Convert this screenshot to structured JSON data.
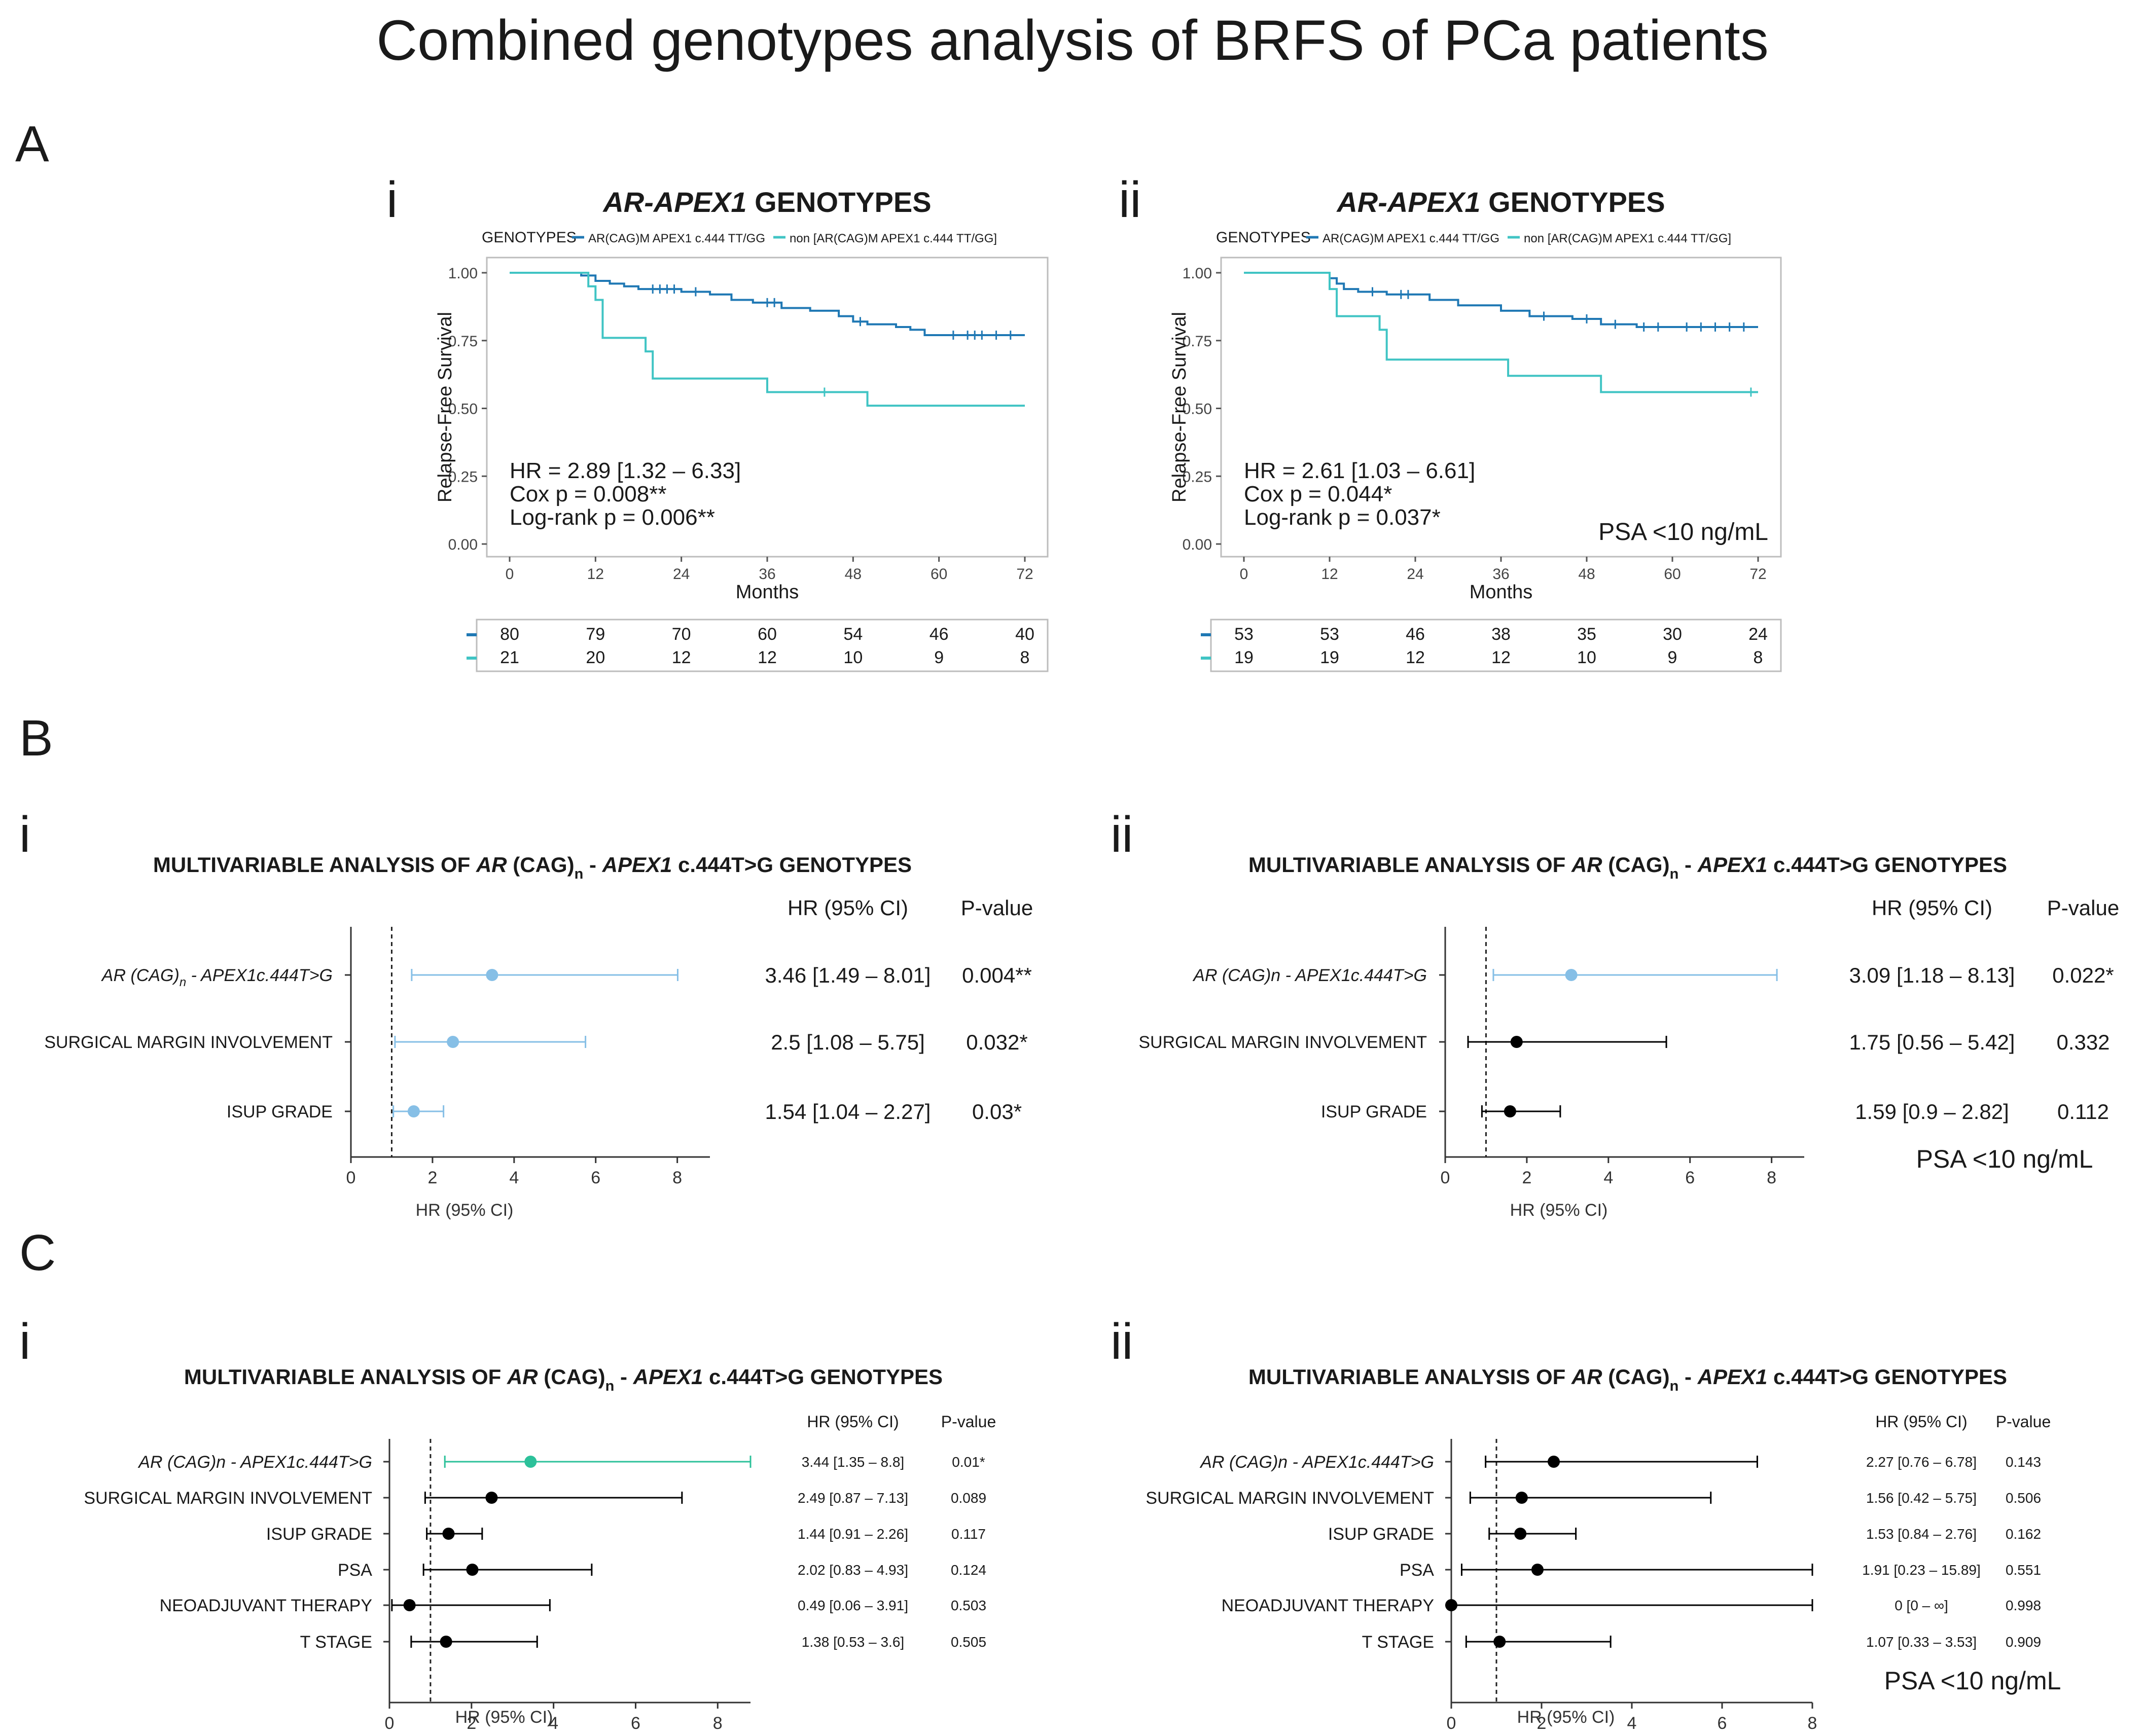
{
  "figure": {
    "title": "Combined genotypes analysis of BRFS of PCa patients",
    "section_labels": [
      "A",
      "B",
      "C"
    ],
    "panel_labels": [
      "i",
      "ii"
    ]
  },
  "colors": {
    "dark_blue": "#1f78b4",
    "teal": "#40c4c4",
    "light_blue": "#86bfe6",
    "green": "#2cc19a",
    "black": "#000000",
    "grey_line": "#bdbdbd",
    "text": "#1a1a1a"
  },
  "chart_data": [
    {
      "id": "A_i",
      "type": "line",
      "subtype": "kaplan-meier",
      "title_italic": "AR-APEX1",
      "title_rest": " GENOTYPES",
      "legend_title": "GENOTYPES",
      "legend": [
        "AR(CAG)M APEX1 c.444 TT/GG",
        "non [AR(CAG)M APEX1 c.444 TT/GG]"
      ],
      "xlabel": "Months",
      "ylabel": "Relapse-Free Survival",
      "xlim": [
        0,
        72
      ],
      "ylim": [
        0,
        1
      ],
      "xticks": [
        "0",
        "12",
        "24",
        "36",
        "48",
        "60",
        "72"
      ],
      "yticks": [
        "0.00",
        "0.25",
        "0.50",
        "0.75",
        "1.00"
      ],
      "stats": [
        "HR = 2.89 [1.32 – 6.33]",
        "Cox p = 0.008**",
        "Log-rank p = 0.006**"
      ],
      "note": "",
      "series": [
        {
          "name": "AR(CAG)M APEX1 c.444 TT/GG",
          "x": [
            0,
            10,
            12,
            14,
            16,
            18,
            24,
            28,
            31,
            34,
            38,
            42,
            46,
            48,
            50,
            54,
            56,
            58,
            72
          ],
          "y": [
            1.0,
            0.99,
            0.97,
            0.96,
            0.95,
            0.94,
            0.93,
            0.92,
            0.9,
            0.89,
            0.87,
            0.86,
            0.84,
            0.82,
            0.81,
            0.8,
            0.79,
            0.77,
            0.77
          ],
          "censor_x": [
            20,
            21,
            22,
            23,
            26,
            36,
            37,
            49,
            62,
            64,
            65,
            66,
            68,
            70
          ]
        },
        {
          "name": "non [AR(CAG)M APEX1 c.444 TT/GG]",
          "x": [
            0,
            11,
            12,
            13,
            19,
            20,
            36,
            50,
            72
          ],
          "y": [
            1.0,
            0.95,
            0.9,
            0.76,
            0.71,
            0.61,
            0.56,
            0.51,
            0.51
          ],
          "censor_x": [
            44
          ]
        }
      ],
      "risk_table": {
        "times": [
          0,
          12,
          24,
          36,
          48,
          60,
          72
        ],
        "rows": [
          [
            "80",
            "79",
            "70",
            "60",
            "54",
            "46",
            "40"
          ],
          [
            "21",
            "20",
            "12",
            "12",
            "10",
            "9",
            "8"
          ]
        ]
      }
    },
    {
      "id": "A_ii",
      "type": "line",
      "subtype": "kaplan-meier",
      "title_italic": "AR-APEX1",
      "title_rest": " GENOTYPES",
      "legend_title": "GENOTYPES",
      "legend": [
        "AR(CAG)M APEX1 c.444 TT/GG",
        "non [AR(CAG)M APEX1 c.444 TT/GG]"
      ],
      "xlabel": "Months",
      "ylabel": "Relapse-Free Survival",
      "xlim": [
        0,
        72
      ],
      "ylim": [
        0,
        1
      ],
      "xticks": [
        "0",
        "12",
        "24",
        "36",
        "48",
        "60",
        "72"
      ],
      "yticks": [
        "0.00",
        "0.25",
        "0.50",
        "0.75",
        "1.00"
      ],
      "stats": [
        "HR = 2.61 [1.03 – 6.61]",
        "Cox p = 0.044*",
        "Log-rank p = 0.037*"
      ],
      "note": "PSA <10 ng/mL",
      "series": [
        {
          "name": "AR(CAG)M APEX1 c.444 TT/GG",
          "x": [
            0,
            12,
            13,
            14,
            16,
            20,
            26,
            30,
            36,
            40,
            46,
            50,
            55,
            72
          ],
          "y": [
            1.0,
            0.98,
            0.96,
            0.94,
            0.93,
            0.92,
            0.9,
            0.88,
            0.86,
            0.84,
            0.83,
            0.81,
            0.8,
            0.8
          ],
          "censor_x": [
            18,
            22,
            23,
            42,
            48,
            52,
            56,
            58,
            62,
            64,
            66,
            68,
            70
          ]
        },
        {
          "name": "non [AR(CAG)M APEX1 c.444 TT/GG]",
          "x": [
            0,
            12,
            13,
            19,
            20,
            37,
            50,
            72
          ],
          "y": [
            1.0,
            0.94,
            0.84,
            0.79,
            0.68,
            0.62,
            0.56,
            0.56
          ],
          "censor_x": [
            71
          ]
        }
      ],
      "risk_table": {
        "times": [
          0,
          12,
          24,
          36,
          48,
          60,
          72
        ],
        "rows": [
          [
            "53",
            "53",
            "46",
            "38",
            "35",
            "30",
            "24"
          ],
          [
            "19",
            "19",
            "12",
            "12",
            "10",
            "9",
            "8"
          ]
        ]
      }
    },
    {
      "id": "B_i",
      "type": "scatter",
      "subtype": "forest",
      "title_parts": [
        [
          "MULTIVARIABLE ANALYSIS OF ",
          "n"
        ],
        [
          "AR",
          "i"
        ],
        [
          " (CAG)",
          "n"
        ],
        [
          "n",
          "sub"
        ],
        [
          " - ",
          "n"
        ],
        [
          "APEX1",
          "i"
        ],
        [
          " c.444T>G GENOTYPES",
          "n"
        ]
      ],
      "col_headers": [
        "HR  (95% CI)",
        "P-value"
      ],
      "xlabel": "HR (95% CI)",
      "xlim": [
        0,
        8.8
      ],
      "xticks": [
        0,
        2,
        4,
        6,
        8
      ],
      "xtick_labels": [
        "0",
        "2",
        "4",
        "6",
        "8"
      ],
      "ref_line": 1,
      "note": "",
      "rows": [
        {
          "label_parts": [
            [
              "AR",
              "i"
            ],
            [
              " (CAG)",
              "i"
            ],
            [
              "n",
              "subi"
            ],
            [
              " - APEX1",
              "i"
            ],
            [
              "c.444T>G",
              "i"
            ]
          ],
          "hr": 3.46,
          "lo": 1.49,
          "hi": 8.01,
          "ci_text": "3.46 [1.49 – 8.01]",
          "p": "0.004**",
          "color": "#86bfe6"
        },
        {
          "label_parts": [
            [
              "SURGICAL MARGIN INVOLVEMENT",
              "n"
            ]
          ],
          "hr": 2.5,
          "lo": 1.08,
          "hi": 5.75,
          "ci_text": "2.5 [1.08 – 5.75]",
          "p": "0.032*",
          "color": "#86bfe6"
        },
        {
          "label_parts": [
            [
              "ISUP GRADE",
              "n"
            ]
          ],
          "hr": 1.54,
          "lo": 1.04,
          "hi": 2.27,
          "ci_text": "1.54 [1.04 – 2.27]",
          "p": "0.03*",
          "color": "#86bfe6"
        }
      ]
    },
    {
      "id": "B_ii",
      "type": "scatter",
      "subtype": "forest",
      "title_parts": [
        [
          "MULTIVARIABLE ANALYSIS OF ",
          "n"
        ],
        [
          "AR",
          "i"
        ],
        [
          " (CAG)",
          "n"
        ],
        [
          "n",
          "sub"
        ],
        [
          " - ",
          "n"
        ],
        [
          "APEX1",
          "i"
        ],
        [
          " c.444T>G GENOTYPES",
          "n"
        ]
      ],
      "col_headers": [
        "HR  (95% CI)",
        "P-value"
      ],
      "xlabel": "HR (95% CI)",
      "xlim": [
        0,
        8.8
      ],
      "xticks": [
        0,
        2,
        4,
        6,
        8
      ],
      "xtick_labels": [
        "0",
        "2",
        "4",
        "6",
        "8"
      ],
      "ref_line": 1,
      "note": "PSA <10 ng/mL",
      "rows": [
        {
          "label_parts": [
            [
              "AR (CAG)n - APEX1c.444T>G",
              "i"
            ]
          ],
          "hr": 3.09,
          "lo": 1.18,
          "hi": 8.13,
          "ci_text": "3.09 [1.18 – 8.13]",
          "p": "0.022*",
          "color": "#86bfe6"
        },
        {
          "label_parts": [
            [
              "SURGICAL MARGIN INVOLVEMENT",
              "n"
            ]
          ],
          "hr": 1.75,
          "lo": 0.56,
          "hi": 5.42,
          "ci_text": "1.75 [0.56 – 5.42]",
          "p": "0.332",
          "color": "#000000"
        },
        {
          "label_parts": [
            [
              "ISUP GRADE",
              "n"
            ]
          ],
          "hr": 1.59,
          "lo": 0.9,
          "hi": 2.82,
          "ci_text": "1.59 [0.9 – 2.82]",
          "p": "0.112",
          "color": "#000000"
        }
      ]
    },
    {
      "id": "C_i",
      "type": "scatter",
      "subtype": "forest",
      "title_parts": [
        [
          "MULTIVARIABLE ANALYSIS OF ",
          "n"
        ],
        [
          "AR",
          "i"
        ],
        [
          " (CAG)",
          "n"
        ],
        [
          "n",
          "sub"
        ],
        [
          " - ",
          "n"
        ],
        [
          "APEX1",
          "i"
        ],
        [
          " c.444T>G GENOTYPES",
          "n"
        ]
      ],
      "col_headers": [
        "HR  (95% CI)",
        "P-value"
      ],
      "xlabel": "HR (95% CI)",
      "xlim": [
        0,
        8.8
      ],
      "xticks": [
        0,
        2,
        4,
        6,
        8
      ],
      "xtick_labels": [
        "0",
        "2",
        "4",
        "6",
        "8"
      ],
      "ref_line": 1,
      "note": "",
      "rows": [
        {
          "label_parts": [
            [
              "AR (CAG)n - APEX1c.444T>G",
              "i"
            ]
          ],
          "hr": 3.44,
          "lo": 1.35,
          "hi": 8.8,
          "ci_text": "3.44 [1.35 – 8.8]",
          "p": "0.01*",
          "color": "#2cc19a"
        },
        {
          "label_parts": [
            [
              "SURGICAL MARGIN INVOLVEMENT",
              "n"
            ]
          ],
          "hr": 2.49,
          "lo": 0.87,
          "hi": 7.13,
          "ci_text": "2.49 [0.87 – 7.13]",
          "p": "0.089",
          "color": "#000000"
        },
        {
          "label_parts": [
            [
              "ISUP GRADE",
              "n"
            ]
          ],
          "hr": 1.44,
          "lo": 0.91,
          "hi": 2.26,
          "ci_text": "1.44 [0.91 – 2.26]",
          "p": "0.117",
          "color": "#000000"
        },
        {
          "label_parts": [
            [
              "PSA",
              "n"
            ]
          ],
          "hr": 2.02,
          "lo": 0.83,
          "hi": 4.93,
          "ci_text": "2.02 [0.83 – 4.93]",
          "p": "0.124",
          "color": "#000000"
        },
        {
          "label_parts": [
            [
              "NEOADJUVANT THERAPY",
              "n"
            ]
          ],
          "hr": 0.49,
          "lo": 0.06,
          "hi": 3.91,
          "ci_text": "0.49 [0.06 – 3.91]",
          "p": "0.503",
          "color": "#000000"
        },
        {
          "label_parts": [
            [
              "T STAGE",
              "n"
            ]
          ],
          "hr": 1.38,
          "lo": 0.53,
          "hi": 3.6,
          "ci_text": "1.38 [0.53 – 3.6]",
          "p": "0.505",
          "color": "#000000"
        }
      ]
    },
    {
      "id": "C_ii",
      "type": "scatter",
      "subtype": "forest",
      "title_parts": [
        [
          "MULTIVARIABLE ANALYSIS OF ",
          "n"
        ],
        [
          "AR",
          "i"
        ],
        [
          " (CAG)",
          "n"
        ],
        [
          "n",
          "sub"
        ],
        [
          " - ",
          "n"
        ],
        [
          "APEX1",
          "i"
        ],
        [
          " c.444T>G GENOTYPES",
          "n"
        ]
      ],
      "col_headers": [
        "HR  (95% CI)",
        "P-value"
      ],
      "xlabel": "HR (95% CI)",
      "xlim": [
        0,
        8
      ],
      "xticks": [
        0,
        2,
        4,
        6,
        8
      ],
      "xtick_labels": [
        "0",
        "2",
        "4",
        "6",
        "8"
      ],
      "ref_line": 1,
      "note": "PSA <10 ng/mL",
      "rows": [
        {
          "label_parts": [
            [
              "AR (CAG)n - APEX1c.444T>G",
              "i"
            ]
          ],
          "hr": 2.27,
          "lo": 0.76,
          "hi": 6.78,
          "ci_text": "2.27 [0.76 – 6.78]",
          "p": "0.143",
          "color": "#000000"
        },
        {
          "label_parts": [
            [
              "SURGICAL MARGIN INVOLVEMENT",
              "n"
            ]
          ],
          "hr": 1.56,
          "lo": 0.42,
          "hi": 5.75,
          "ci_text": "1.56 [0.42 – 5.75]",
          "p": "0.506",
          "color": "#000000"
        },
        {
          "label_parts": [
            [
              "ISUP GRADE",
              "n"
            ]
          ],
          "hr": 1.53,
          "lo": 0.84,
          "hi": 2.76,
          "ci_text": "1.53 [0.84 – 2.76]",
          "p": "0.162",
          "color": "#000000"
        },
        {
          "label_parts": [
            [
              "PSA",
              "n"
            ]
          ],
          "hr": 1.91,
          "lo": 0.23,
          "hi": 15.89,
          "ci_text": "1.91 [0.23 – 15.89]",
          "p": "0.551",
          "color": "#000000"
        },
        {
          "label_parts": [
            [
              "NEOADJUVANT THERAPY",
              "n"
            ]
          ],
          "hr": 0,
          "lo": 0,
          "hi": 999,
          "ci_text": "0 [0 – ∞]",
          "p": "0.998",
          "color": "#000000"
        },
        {
          "label_parts": [
            [
              "T STAGE",
              "n"
            ]
          ],
          "hr": 1.07,
          "lo": 0.33,
          "hi": 3.53,
          "ci_text": "1.07 [0.33 – 3.53]",
          "p": "0.909",
          "color": "#000000"
        }
      ]
    }
  ]
}
